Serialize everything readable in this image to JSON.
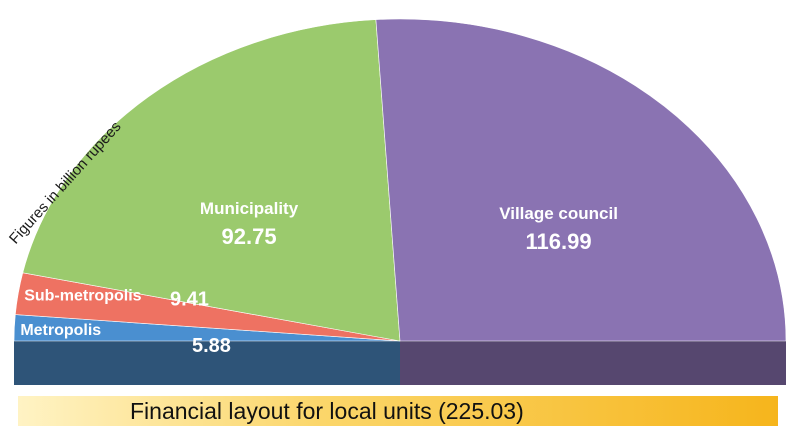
{
  "chart_data": {
    "type": "pie",
    "style": "semicircle-3d",
    "title": "Financial layout for local units (225.03)",
    "note": "Figures in billion rupees",
    "slices": [
      {
        "label": "Metropolis",
        "value": 5.88,
        "value_label": "5.88",
        "color": "#4a8fd0",
        "side_color": "#2e5478"
      },
      {
        "label": "Sub-metropolis",
        "value": 9.41,
        "value_label": "9.41",
        "color": "#ee7262",
        "side_color": "#2e5478"
      },
      {
        "label": "Municipality",
        "value": 92.75,
        "value_label": "92.75",
        "color": "#9bca6d",
        "side_color": "#2e5478"
      },
      {
        "label": "Village council",
        "value": 116.99,
        "value_label": "116.99",
        "color": "#8a73b2",
        "side_color": "#56476f"
      }
    ],
    "total": 225.03
  }
}
